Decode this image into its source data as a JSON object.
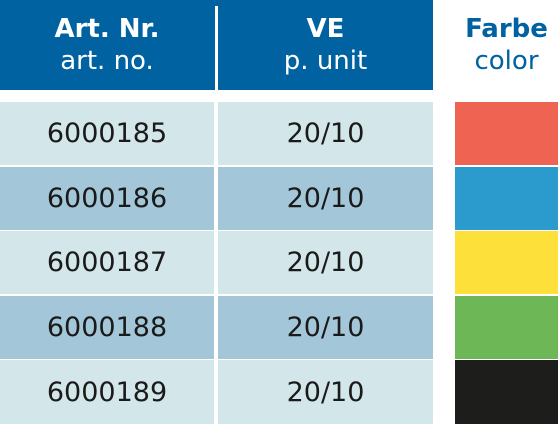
{
  "table": {
    "header": [
      {
        "title": "Art. Nr.",
        "subtitle": "art. no."
      },
      {
        "title": "VE",
        "subtitle": "p. unit"
      },
      {
        "title": "Farbe",
        "subtitle": "color"
      }
    ],
    "header_color": "#0062a1",
    "row_colors": [
      "#d3e6ea",
      "#a3c7d8"
    ],
    "rows": [
      {
        "cells": [
          "6000185",
          "20/10"
        ],
        "color": "#ee6352"
      },
      {
        "cells": [
          "6000186",
          "20/10"
        ],
        "color": "#2b9acc"
      },
      {
        "cells": [
          "6000187",
          "20/10"
        ],
        "color": "#fde03a"
      },
      {
        "cells": [
          "6000188",
          "20/10"
        ],
        "color": "#6db756"
      },
      {
        "cells": [
          "6000189",
          "20/10"
        ],
        "color": "#1d1d1b"
      }
    ]
  }
}
